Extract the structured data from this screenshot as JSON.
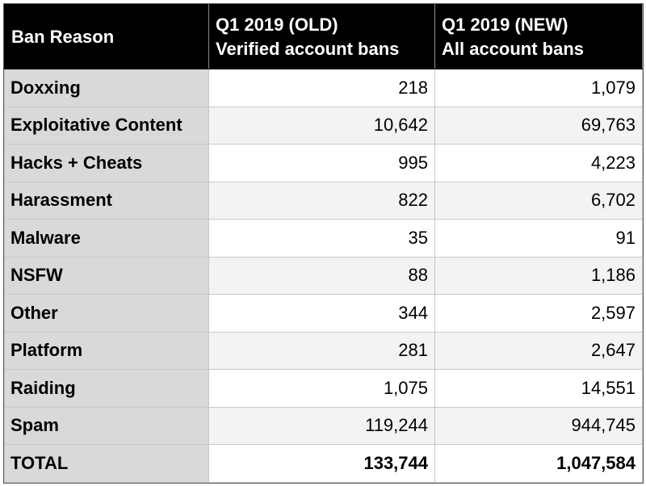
{
  "table": {
    "header": [
      "Ban Reason",
      [
        "Q1 2019 (OLD)",
        "Verified account bans"
      ],
      [
        "Q1 2019 (NEW)",
        "All account bans"
      ]
    ],
    "rows": [
      [
        "Doxxing",
        "218",
        "1,079"
      ],
      [
        "Exploitative Content",
        "10,642",
        "69,763"
      ],
      [
        "Hacks + Cheats",
        "995",
        "4,223"
      ],
      [
        "Harassment",
        "822",
        "6,702"
      ],
      [
        "Malware",
        "35",
        "91"
      ],
      [
        "NSFW",
        "88",
        "1,186"
      ],
      [
        "Other",
        "344",
        "2,597"
      ],
      [
        "Platform",
        "281",
        "2,647"
      ],
      [
        "Raiding",
        "1,075",
        "14,551"
      ],
      [
        "Spam",
        "119,244",
        "944,745"
      ]
    ],
    "total": [
      "TOTAL",
      "133,744",
      "1,047,584"
    ]
  }
}
